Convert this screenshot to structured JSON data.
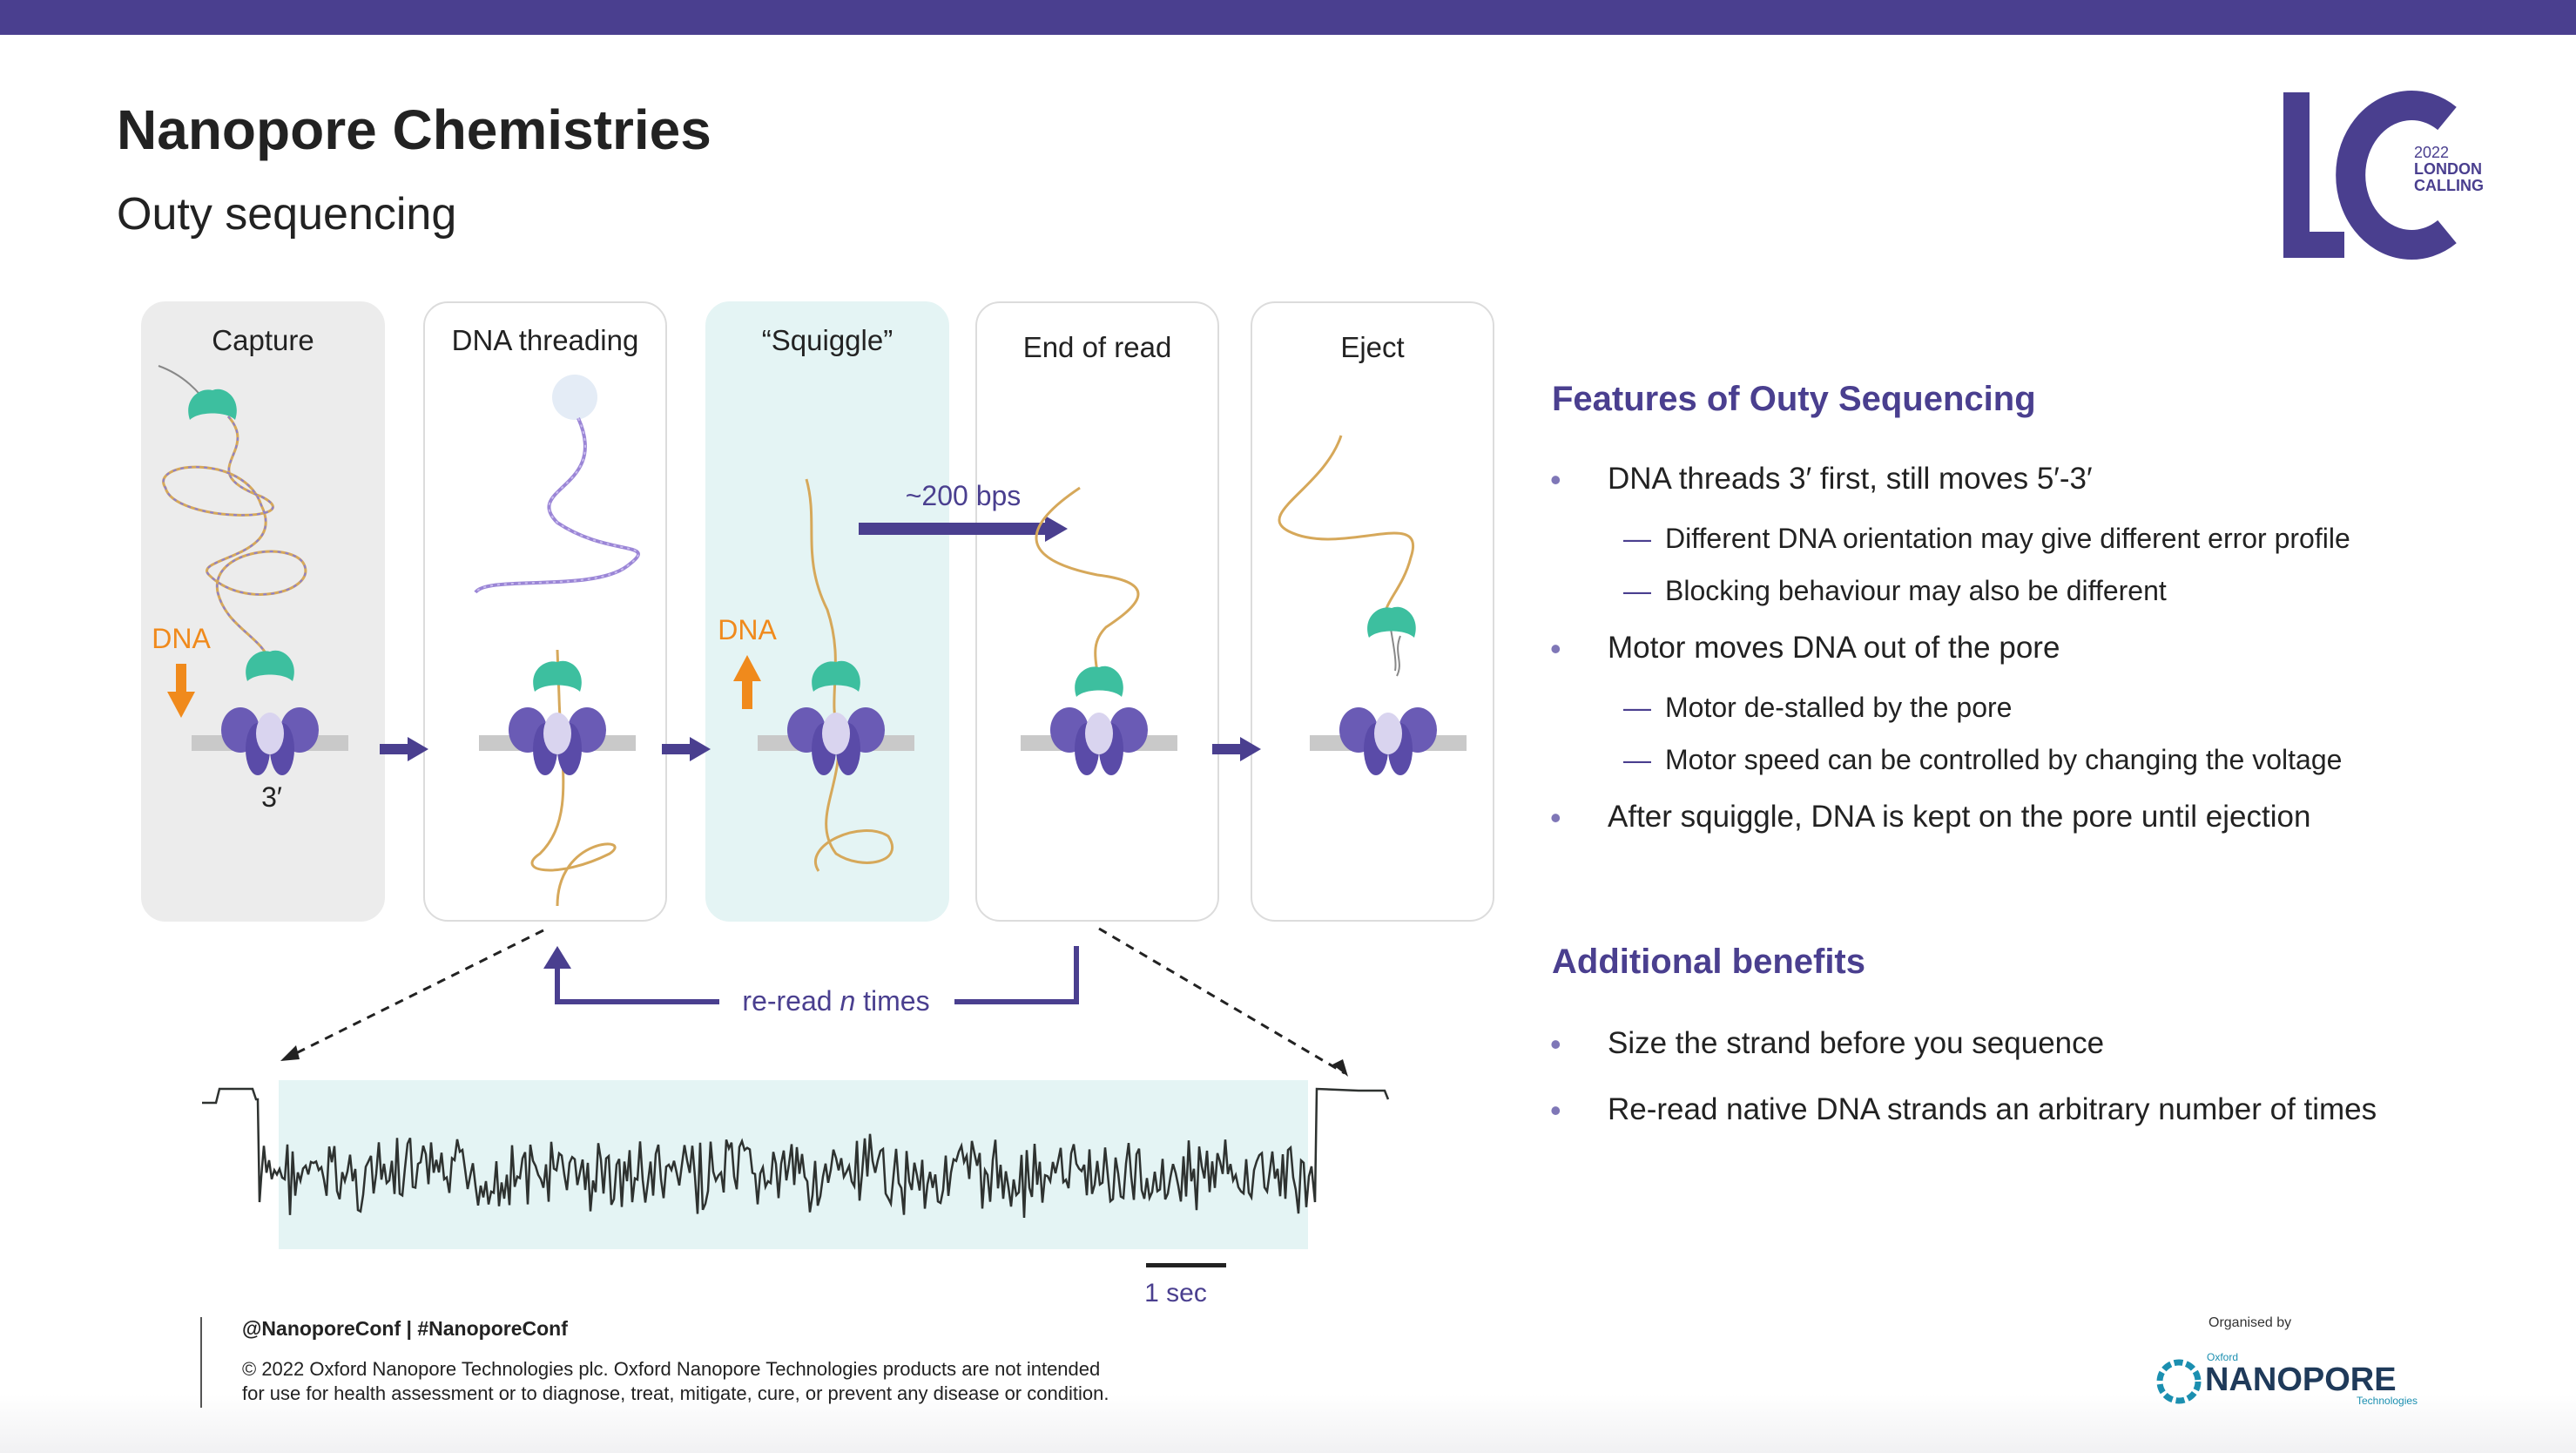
{
  "header": {
    "title": "Nanopore Chemistries",
    "subtitle": "Outy sequencing"
  },
  "logo": {
    "letters": "LC",
    "year": "2022",
    "line1": "LONDON",
    "line2": "CALLING"
  },
  "diagram": {
    "panels": [
      {
        "label": "Capture"
      },
      {
        "label": "DNA threading"
      },
      {
        "label": "“Squiggle”"
      },
      {
        "label": "End of read"
      },
      {
        "label": "Eject"
      }
    ],
    "dna_label_capture": "DNA",
    "dna_label_squiggle": "DNA",
    "three_prime": "3′",
    "bps_label": "~200 bps",
    "reread_prefix": "re-read ",
    "reread_n": "n",
    "reread_suffix": " times",
    "scale_label": "1 sec"
  },
  "features": {
    "heading": "Features of Outy Sequencing",
    "bullets": [
      "DNA threads 3′ first, still moves 5′-3′",
      "Motor moves DNA out of the pore",
      "After squiggle, DNA is kept on the pore until ejection"
    ],
    "subbullets": [
      "Different DNA orientation may give different error profile",
      "Blocking behaviour may also be different",
      "Motor de-stalled by the pore",
      "Motor speed can be controlled by changing the voltage"
    ]
  },
  "benefits": {
    "heading": "Additional benefits",
    "bullets": [
      "Size the strand before you sequence",
      "Re-read native DNA strands an arbitrary number of times"
    ]
  },
  "footer": {
    "handle": "@NanoporeConf | #NanoporeConf",
    "copyright_line1": "© 2022 Oxford Nanopore Technologies plc. Oxford Nanopore Technologies products are not intended",
    "copyright_line2": "for use for health assessment or to diagnose, treat, mitigate, cure, or prevent any disease or condition.",
    "organised_by": "Organised by",
    "brand_small": "Oxford",
    "brand": "NANOPORE",
    "brand_sub": "Technologies"
  },
  "colors": {
    "brand_purple": "#4a3f8f",
    "teal": "#3dbf9f",
    "orange": "#f08a1c"
  }
}
